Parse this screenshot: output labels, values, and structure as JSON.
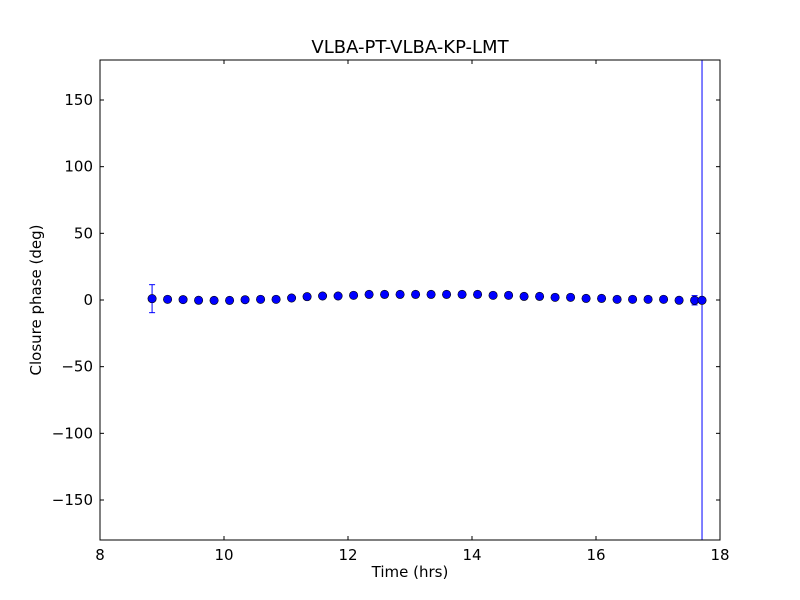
{
  "chart_data": {
    "type": "scatter",
    "title": "VLBA-PT-VLBA-KP-LMT",
    "xlabel": "Time (hrs)",
    "ylabel": "Closure phase (deg)",
    "xlim": [
      8,
      18
    ],
    "ylim": [
      -180,
      180
    ],
    "xticks": [
      8,
      10,
      12,
      14,
      16,
      18
    ],
    "xtick_labels": [
      "8",
      "10",
      "12",
      "14",
      "16",
      "18"
    ],
    "yticks": [
      -150,
      -100,
      -50,
      0,
      50,
      100,
      150
    ],
    "ytick_labels": [
      "−150",
      "−100",
      "−50",
      "0",
      "50",
      "100",
      "150"
    ],
    "grid": false,
    "marker_color": "#0000ff",
    "errorbar_color": "#0000ff",
    "series": [
      {
        "name": "closure phase",
        "x": [
          8.84,
          9.09,
          9.34,
          9.59,
          9.84,
          10.09,
          10.34,
          10.59,
          10.84,
          11.09,
          11.34,
          11.59,
          11.84,
          12.09,
          12.34,
          12.59,
          12.84,
          13.09,
          13.34,
          13.59,
          13.84,
          14.09,
          14.34,
          14.59,
          14.84,
          15.09,
          15.34,
          15.59,
          15.84,
          16.09,
          16.34,
          16.59,
          16.84,
          17.09,
          17.34,
          17.59,
          17.71
        ],
        "y": [
          1.0,
          0.5,
          0.3,
          -0.2,
          -0.3,
          -0.3,
          0.2,
          0.5,
          0.5,
          1.5,
          2.5,
          3.0,
          3.0,
          3.5,
          4.2,
          4.2,
          4.2,
          4.2,
          4.2,
          4.2,
          4.2,
          4.2,
          3.5,
          3.5,
          2.7,
          2.7,
          2.0,
          2.0,
          1.2,
          1.2,
          0.5,
          0.5,
          0.5,
          0.5,
          -0.2,
          -0.2,
          -0.2
        ],
        "yerr": [
          10.5,
          0,
          0,
          0,
          0,
          0,
          0,
          0,
          0,
          0,
          0,
          0,
          0,
          0,
          0,
          0,
          0,
          0,
          0,
          0,
          0,
          0,
          0,
          0,
          0,
          0,
          0,
          0,
          0,
          0,
          0,
          0,
          0,
          0,
          0,
          3.5,
          1000
        ]
      }
    ]
  }
}
